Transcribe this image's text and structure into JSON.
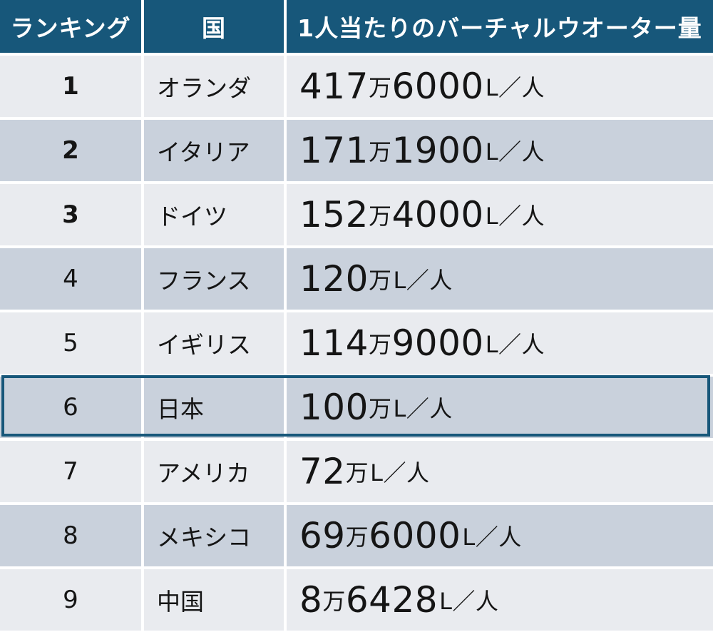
{
  "headers": {
    "rank": "ランキング",
    "country": "国",
    "value": "1人当たりのバーチャルウオーター量"
  },
  "chart_data": {
    "type": "table",
    "columns": [
      "ランキング",
      "国",
      "1人当たりのバーチャルウオーター量"
    ],
    "rows": [
      {
        "rank": "1",
        "country": "オランダ",
        "num_man": "417",
        "man": "万",
        "num_rest": "6000",
        "unit": "L／人"
      },
      {
        "rank": "2",
        "country": "イタリア",
        "num_man": "171",
        "man": "万",
        "num_rest": "1900",
        "unit": "L／人"
      },
      {
        "rank": "3",
        "country": "ドイツ",
        "num_man": "152",
        "man": "万",
        "num_rest": "4000",
        "unit": "L／人"
      },
      {
        "rank": "4",
        "country": "フランス",
        "num_man": "120",
        "man": "万",
        "num_rest": "",
        "unit": "L／人"
      },
      {
        "rank": "5",
        "country": "イギリス",
        "num_man": "114",
        "man": "万",
        "num_rest": "9000",
        "unit": "L／人"
      },
      {
        "rank": "6",
        "country": "日本",
        "num_man": "100",
        "man": "万",
        "num_rest": "",
        "unit": "L／人"
      },
      {
        "rank": "7",
        "country": "アメリカ",
        "num_man": "72",
        "man": "万",
        "num_rest": "",
        "unit": "L／人"
      },
      {
        "rank": "8",
        "country": "メキシコ",
        "num_man": "69",
        "man": "万",
        "num_rest": "6000",
        "unit": "L／人"
      },
      {
        "rank": "9",
        "country": "中国",
        "num_man": "8",
        "man": "万",
        "num_rest": "6428",
        "unit": "L／人"
      }
    ],
    "values_liters_per_person": [
      4176000,
      1711900,
      1524000,
      1200000,
      1149000,
      1000000,
      720000,
      696000,
      86428
    ],
    "highlighted_rank": 6,
    "bold_ranks": [
      1,
      2,
      3
    ]
  },
  "colors": {
    "header_bg": "#17577a",
    "row_light": "#e9ebef",
    "row_dark": "#c9d1dc",
    "highlight_border": "#17577a"
  }
}
